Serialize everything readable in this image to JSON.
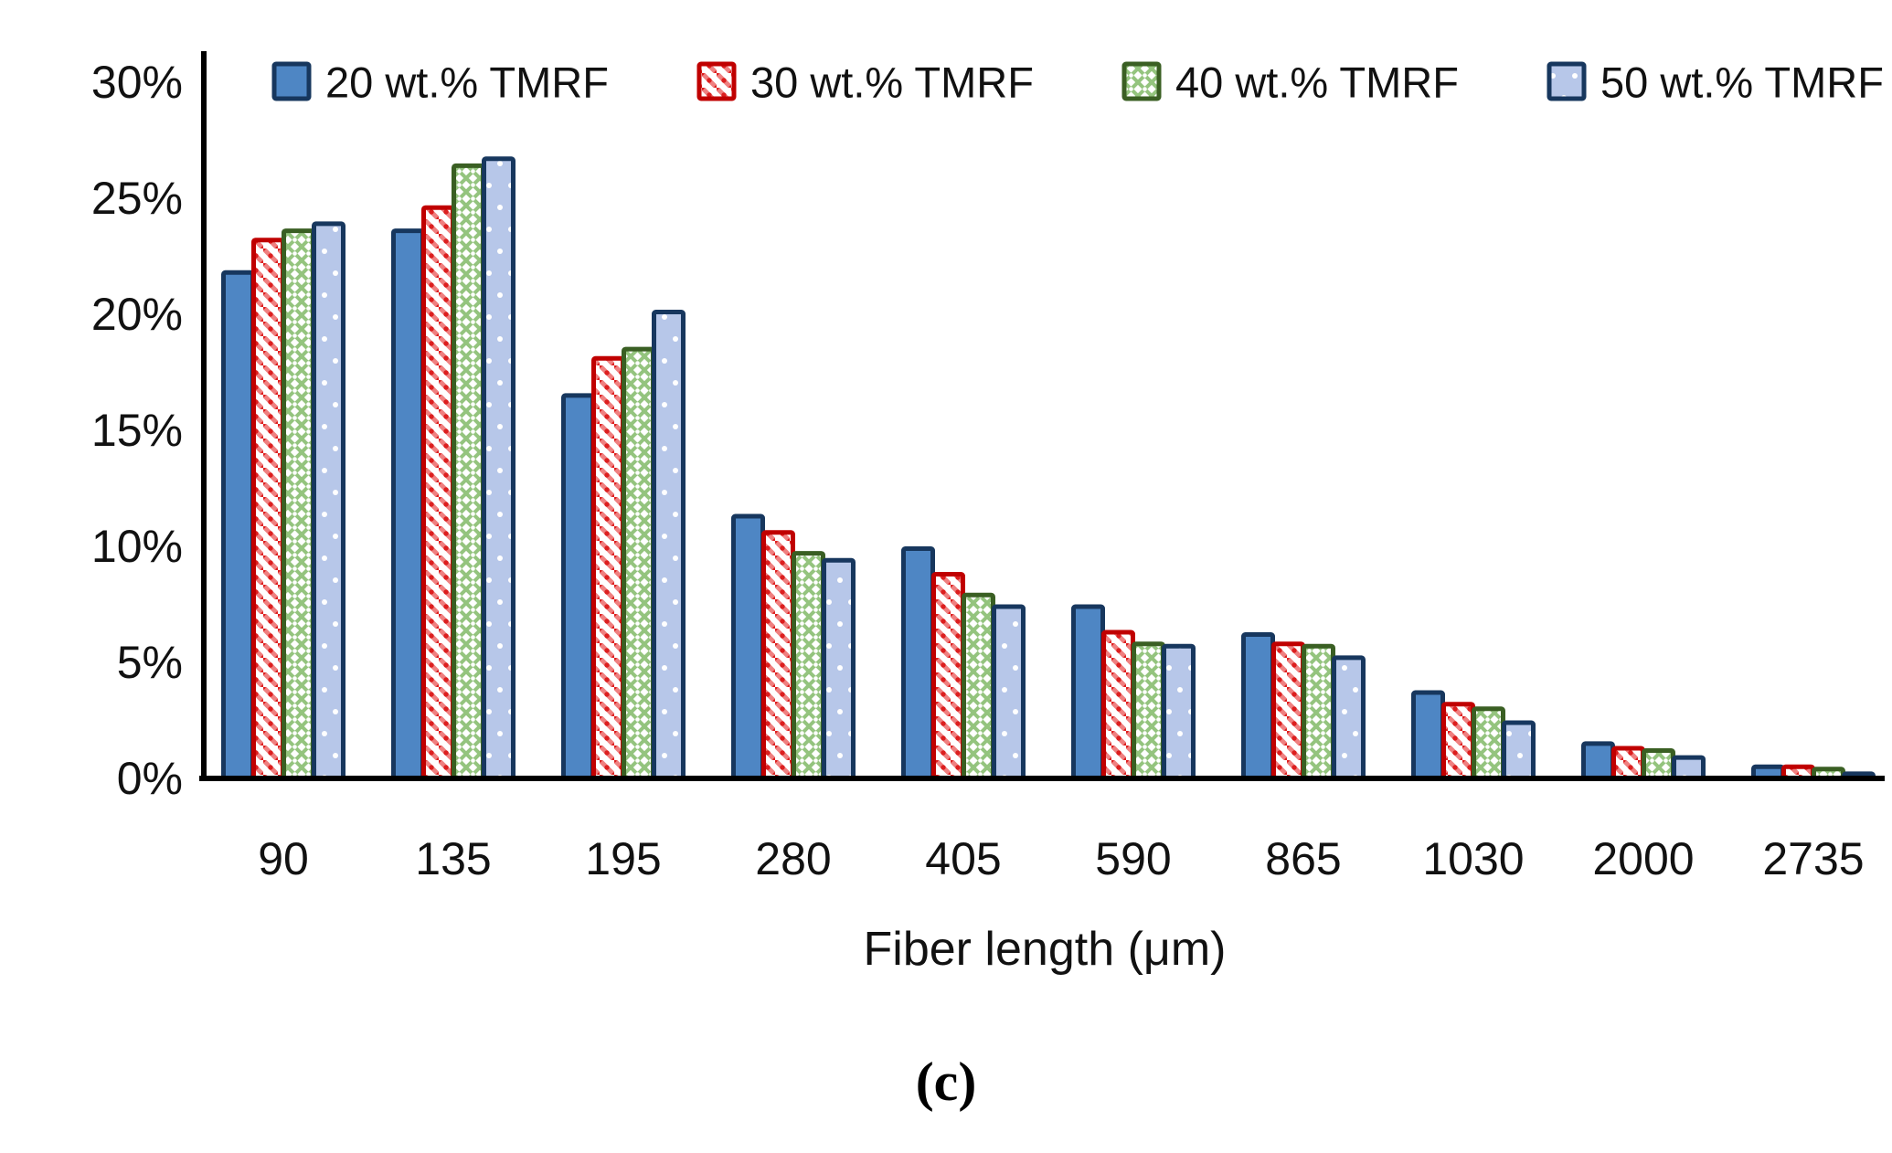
{
  "figure": {
    "caption": "(c)",
    "x_axis_title": "Fiber length (μm)"
  },
  "chart_data": {
    "type": "bar",
    "title": "",
    "xlabel": "Fiber length (μm)",
    "ylabel": "",
    "ylim": [
      0,
      30
    ],
    "y_tick_step": 5,
    "y_tick_labels": [
      "0%",
      "5%",
      "10%",
      "15%",
      "20%",
      "25%",
      "30%"
    ],
    "grid": false,
    "legend_position": "top",
    "categories": [
      "90",
      "135",
      "195",
      "280",
      "405",
      "590",
      "865",
      "1030",
      "2000",
      "2735"
    ],
    "series": [
      {
        "name": "20 wt.% TMRF",
        "pattern": "solid-blue",
        "values": [
          21.8,
          23.6,
          16.5,
          11.3,
          9.9,
          7.4,
          6.2,
          3.7,
          1.5,
          0.5
        ]
      },
      {
        "name": "30 wt.% TMRF",
        "pattern": "red-diagonal-hatch",
        "values": [
          23.2,
          24.6,
          18.1,
          10.6,
          8.8,
          6.3,
          5.8,
          3.2,
          1.3,
          0.5
        ]
      },
      {
        "name": "40 wt.% TMRF",
        "pattern": "green-lattice",
        "values": [
          23.6,
          26.4,
          18.5,
          9.7,
          7.9,
          5.8,
          5.7,
          3.0,
          1.2,
          0.4
        ]
      },
      {
        "name": "50 wt.% TMRF",
        "pattern": "light-blue-dots",
        "values": [
          23.9,
          26.7,
          20.1,
          9.4,
          7.4,
          5.7,
          5.2,
          2.4,
          0.9,
          0.2
        ]
      }
    ],
    "colors": {
      "axis": "#000000",
      "text": "#111111",
      "series1_fill": "#4e86c4",
      "series1_border": "#17375e",
      "series2_stripe": "#ef8080",
      "series2_dot": "#dc1f1f",
      "series2_border": "#c00000",
      "series3_line": "#94c47e",
      "series3_border": "#3a5f23",
      "series4_fill": "#b7c7e9",
      "series4_dot": "#ffffff",
      "series4_border": "#17375e"
    }
  }
}
